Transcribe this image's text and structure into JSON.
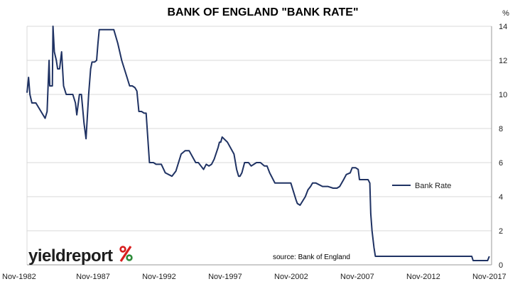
{
  "brand": {
    "name": "yieldreport",
    "symbol": "%"
  },
  "source_note": "source: Bank of England",
  "colors": {
    "line": "#1f3263",
    "grid": "#d9d9d9",
    "axis": "#9a9a9a",
    "brand_red": "#d81e1e",
    "brand_green": "#2e8b3a"
  },
  "chart_data": {
    "type": "line",
    "title": "BANK OF ENGLAND \"BANK RATE\"",
    "ylabel": "%",
    "xlabel": "",
    "ylim": [
      0,
      14
    ],
    "xlim": [
      1982.83,
      2018.0
    ],
    "yticks": [
      0,
      2,
      4,
      6,
      8,
      10,
      12,
      14
    ],
    "xticks": [
      {
        "label": "Nov-1982",
        "x": 1982.83
      },
      {
        "label": "Nov-1987",
        "x": 1987.83
      },
      {
        "label": "Nov-1992",
        "x": 1992.83
      },
      {
        "label": "Nov-1997",
        "x": 1997.83
      },
      {
        "label": "Nov-2002",
        "x": 2002.83
      },
      {
        "label": "Nov-2007",
        "x": 2007.83
      },
      {
        "label": "Nov-2012",
        "x": 2012.83
      },
      {
        "label": "Nov-2017",
        "x": 2017.83
      }
    ],
    "grid": "horizontal",
    "legend": "right",
    "series": [
      {
        "name": "Bank Rate",
        "x": [
          1982.83,
          1982.95,
          1983.05,
          1983.2,
          1983.35,
          1983.5,
          1984.2,
          1984.35,
          1984.5,
          1984.55,
          1984.65,
          1984.75,
          1984.8,
          1984.9,
          1985.05,
          1985.15,
          1985.22,
          1985.3,
          1985.45,
          1985.6,
          1985.8,
          1986.0,
          1986.15,
          1986.3,
          1986.5,
          1986.6,
          1986.8,
          1986.95,
          1987.15,
          1987.3,
          1987.5,
          1987.65,
          1987.75,
          1987.85,
          1987.95,
          1988.1,
          1988.2,
          1988.3,
          1988.5,
          1988.7,
          1988.85,
          1989.0,
          1989.2,
          1989.4,
          1989.7,
          1990.0,
          1990.4,
          1990.6,
          1990.8,
          1991.0,
          1991.15,
          1991.3,
          1991.5,
          1991.7,
          1991.85,
          1992.1,
          1992.4,
          1992.6,
          1992.7,
          1992.75,
          1993.0,
          1993.3,
          1993.8,
          1994.1,
          1994.5,
          1994.8,
          1995.1,
          1995.6,
          1995.8,
          1996.0,
          1996.2,
          1996.4,
          1996.6,
          1996.8,
          1997.0,
          1997.3,
          1997.4,
          1997.5,
          1997.6,
          1998.0,
          1998.5,
          1998.7,
          1998.85,
          1998.95,
          1999.1,
          1999.3,
          1999.6,
          1999.8,
          2000.2,
          2000.5,
          2000.8,
          2001.0,
          2001.2,
          2001.4,
          2001.6,
          2001.8,
          2001.9,
          2002.3,
          2002.8,
          2003.2,
          2003.3,
          2003.5,
          2003.9,
          2004.1,
          2004.3,
          2004.45,
          2004.7,
          2005.2,
          2005.6,
          2006.0,
          2006.3,
          2006.5,
          2006.8,
          2007.0,
          2007.3,
          2007.45,
          2007.7,
          2007.9,
          2008.0,
          2008.3,
          2008.65,
          2008.78,
          2008.85,
          2008.95,
          2009.1,
          2009.2,
          2016.5,
          2016.6,
          2017.7,
          2017.83
        ],
        "values": [
          10.1,
          11.0,
          10.0,
          9.5,
          9.5,
          9.5,
          8.6,
          9.0,
          12.0,
          10.5,
          10.5,
          10.5,
          14.0,
          12.5,
          12.0,
          11.5,
          11.5,
          11.5,
          12.5,
          10.5,
          10.0,
          10.0,
          10.0,
          10.0,
          9.5,
          8.8,
          10.0,
          10.0,
          8.3,
          7.4,
          10.0,
          11.5,
          11.9,
          11.9,
          11.9,
          12.0,
          13.0,
          13.8,
          13.8,
          13.8,
          13.8,
          13.8,
          13.8,
          13.8,
          13.0,
          12.0,
          11.0,
          10.5,
          10.5,
          10.4,
          10.2,
          9.0,
          9.0,
          8.9,
          8.9,
          6.0,
          6.0,
          5.9,
          5.9,
          5.9,
          5.9,
          5.4,
          5.2,
          5.5,
          6.5,
          6.7,
          6.7,
          6.0,
          6.0,
          5.8,
          5.6,
          5.9,
          5.8,
          5.9,
          6.2,
          6.9,
          7.2,
          7.2,
          7.5,
          7.2,
          6.5,
          5.6,
          5.2,
          5.2,
          5.4,
          6.0,
          6.0,
          5.8,
          6.0,
          6.0,
          5.8,
          5.8,
          5.4,
          5.1,
          4.8,
          4.8,
          4.8,
          4.8,
          4.8,
          3.8,
          3.6,
          3.5,
          4.0,
          4.4,
          4.6,
          4.8,
          4.8,
          4.6,
          4.6,
          4.5,
          4.5,
          4.6,
          5.0,
          5.3,
          5.4,
          5.7,
          5.7,
          5.6,
          5.0,
          5.0,
          5.0,
          4.8,
          3.0,
          2.0,
          1.0,
          0.5,
          0.5,
          0.25,
          0.25,
          0.5
        ]
      }
    ]
  }
}
